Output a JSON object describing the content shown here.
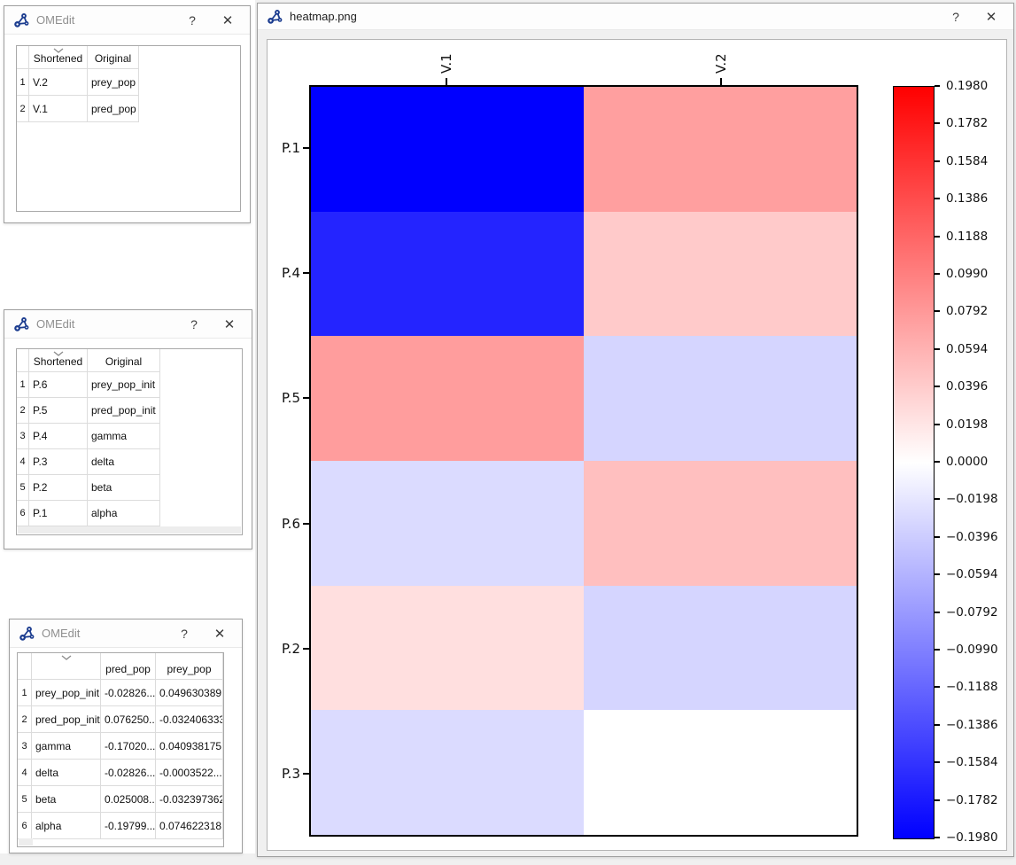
{
  "ui": {
    "help_glyph": "?",
    "close_glyph": "✕",
    "icons": {
      "omedit_logo": "blue molecule logo",
      "sort_indicator": "⌄"
    },
    "colors": {
      "logo_blue": "#1b3c8f",
      "window_bg": "#ffffff",
      "desktop_bg": "#f0f0f0"
    }
  },
  "windows": [
    {
      "title": "OMEdit",
      "table": {
        "sort_column": "Shortened",
        "headers": [
          "Shortened",
          "Original"
        ],
        "rows": [
          {
            "num": "1",
            "cells": [
              "V.2",
              "prey_pop"
            ]
          },
          {
            "num": "2",
            "cells": [
              "V.1",
              "pred_pop"
            ]
          }
        ]
      }
    },
    {
      "title": "OMEdit",
      "table": {
        "sort_column": "Shortened",
        "headers": [
          "Shortened",
          "Original"
        ],
        "rows": [
          {
            "num": "1",
            "cells": [
              "P.6",
              "prey_pop_init"
            ]
          },
          {
            "num": "2",
            "cells": [
              "P.5",
              "pred_pop_init"
            ]
          },
          {
            "num": "3",
            "cells": [
              "P.4",
              "gamma"
            ]
          },
          {
            "num": "4",
            "cells": [
              "P.3",
              "delta"
            ]
          },
          {
            "num": "5",
            "cells": [
              "P.2",
              "beta"
            ]
          },
          {
            "num": "6",
            "cells": [
              "P.1",
              "alpha"
            ]
          }
        ]
      }
    },
    {
      "title": "OMEdit",
      "table": {
        "sort_column": "",
        "headers": [
          "",
          "pred_pop",
          "prey_pop"
        ],
        "rows": [
          {
            "num": "1",
            "cells": [
              "prey_pop_init",
              "-0.02826...",
              "0.049630389"
            ]
          },
          {
            "num": "2",
            "cells": [
              "pred_pop_init",
              "0.076250...",
              "-0.032406333"
            ]
          },
          {
            "num": "3",
            "cells": [
              "gamma",
              "-0.17020...",
              "0.040938175"
            ]
          },
          {
            "num": "4",
            "cells": [
              "delta",
              "-0.02826...",
              "-0.0003522..."
            ]
          },
          {
            "num": "5",
            "cells": [
              "beta",
              "0.025008...",
              "-0.032397362"
            ]
          },
          {
            "num": "6",
            "cells": [
              "alpha",
              "-0.19799...",
              "0.074622318"
            ]
          }
        ]
      }
    }
  ],
  "heatmap_window": {
    "title": "heatmap.png"
  },
  "chart_data": {
    "type": "heatmap",
    "title": "",
    "columns": [
      "V.1",
      "V.2"
    ],
    "rows": [
      "P.1",
      "P.4",
      "P.5",
      "P.6",
      "P.2",
      "P.3"
    ],
    "values": [
      [
        -0.19799,
        0.074622318
      ],
      [
        -0.1702,
        0.040938175
      ],
      [
        0.07625,
        -0.032406333
      ],
      [
        -0.02826,
        0.049630389
      ],
      [
        0.025008,
        -0.032397362
      ],
      [
        -0.02826,
        -0.0003522
      ]
    ],
    "vmin": -0.198,
    "vmax": 0.198,
    "colormap": {
      "name": "bwr",
      "low": "#0000ff",
      "mid": "#ffffff",
      "high": "#ff0000"
    },
    "colorbar_position": "right",
    "colorbar_ticks": [
      "0.1980",
      "0.1782",
      "0.1584",
      "0.1386",
      "0.1188",
      "0.0990",
      "0.0792",
      "0.0594",
      "0.0396",
      "0.0198",
      "0.0000",
      "−0.0198",
      "−0.0396",
      "−0.0594",
      "−0.0792",
      "−0.0990",
      "−0.1188",
      "−0.1386",
      "−0.1584",
      "−0.1782",
      "−0.1980"
    ]
  }
}
